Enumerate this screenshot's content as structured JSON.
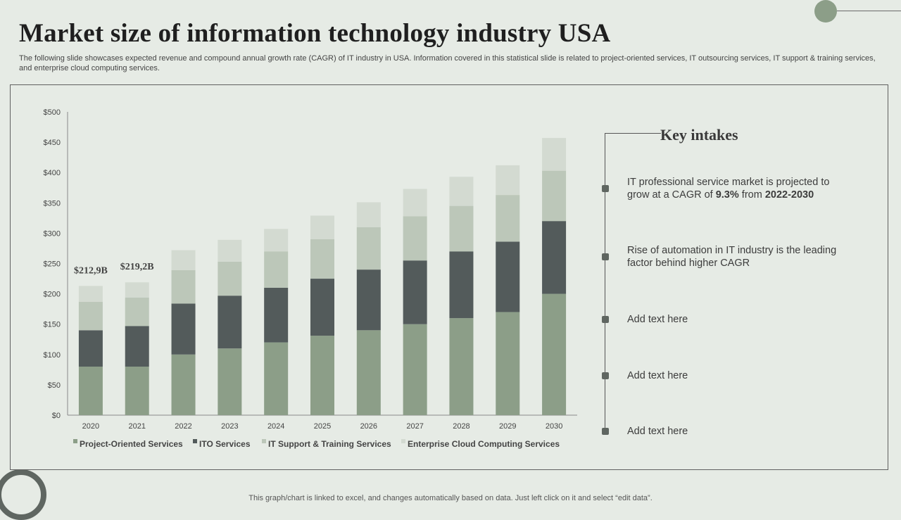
{
  "title": "Market size of information technology industry USA",
  "subtitle": "The following slide showcases expected revenue and compound annual growth rate (CAGR) of IT industry in USA. Information covered in this statistical slide is related to project-oriented services, IT outsourcing services, IT support & training services, and enterprise cloud computing services.",
  "footer": "This graph/chart is linked to excel, and changes automatically based on data. Just left click on it and select “edit data”.",
  "key_intakes": {
    "title": "Key intakes",
    "items": [
      {
        "pre": "IT professional service market is projected to grow at a CAGR of ",
        "bold1": "9.3%",
        "mid": " from ",
        "bold2": "2022-2030"
      },
      {
        "pre": "Rise of automation in IT industry is the leading factor behind higher CAGR",
        "bold1": "",
        "mid": "",
        "bold2": ""
      },
      {
        "pre": "Add text here",
        "bold1": "",
        "mid": "",
        "bold2": ""
      },
      {
        "pre": "Add text here",
        "bold1": "",
        "mid": "",
        "bold2": ""
      },
      {
        "pre": "Add text here",
        "bold1": "",
        "mid": "",
        "bold2": ""
      }
    ]
  },
  "colors": {
    "project": "#8c9e88",
    "ito": "#535b5b",
    "support": "#bcc7b9",
    "cloud": "#d3dad1",
    "accent_dark": "#5f6661"
  },
  "chart_data": {
    "type": "bar",
    "stacked": true,
    "categories": [
      "2020",
      "2021",
      "2022",
      "2023",
      "2024",
      "2025",
      "2026",
      "2027",
      "2028",
      "2029",
      "2030"
    ],
    "series": [
      {
        "name": "Project-Oriented Services",
        "values": [
          80,
          80,
          100,
          110,
          120,
          131,
          140,
          150,
          160,
          170,
          200
        ]
      },
      {
        "name": "ITO Services",
        "values": [
          60,
          67,
          84,
          87,
          90,
          94,
          100,
          105,
          110,
          116,
          120
        ]
      },
      {
        "name": "IT Support & Training Services",
        "values": [
          47,
          47,
          55,
          56,
          60,
          65,
          70,
          73,
          75,
          77,
          83
        ]
      },
      {
        "name": "Enterprise Cloud Computing Services",
        "values": [
          26,
          25,
          33,
          36,
          37,
          39,
          41,
          45,
          48,
          49,
          54
        ]
      }
    ],
    "data_labels": [
      {
        "category": "2020",
        "text": "$212,9B"
      },
      {
        "category": "2021",
        "text": "$219,2B"
      }
    ],
    "yticks": [
      "$0",
      "$50",
      "$100",
      "$150",
      "$200",
      "$250",
      "$300",
      "$350",
      "$400",
      "$450",
      "$500"
    ],
    "ylim": [
      0,
      500
    ],
    "legend_position": "bottom",
    "title": "",
    "xlabel": "",
    "ylabel": ""
  }
}
